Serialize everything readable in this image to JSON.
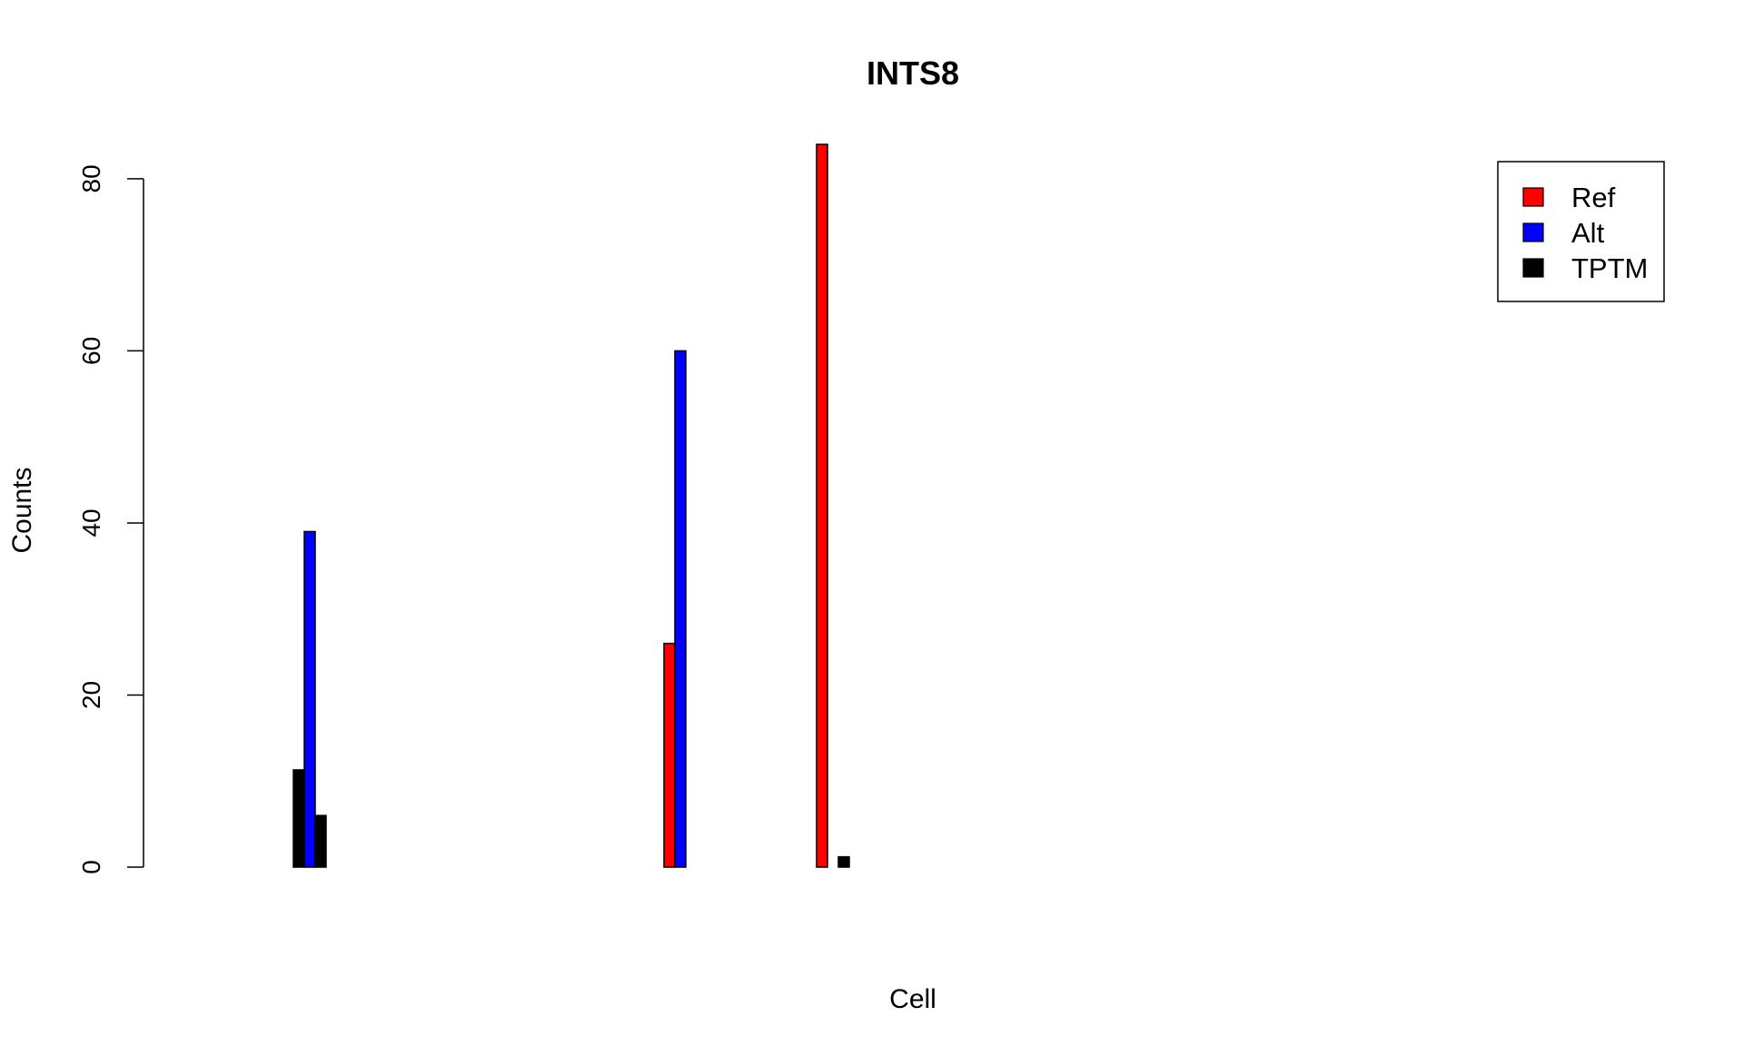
{
  "chart_data": {
    "type": "bar",
    "title": "INTS8",
    "xlabel": "Cell",
    "ylabel": "Counts",
    "ylim": [
      0,
      84
    ],
    "yticks": [
      0,
      20,
      40,
      60,
      80
    ],
    "xlim_slots": 34,
    "legend_position": "top-right",
    "colors": {
      "Ref": "#ff0000",
      "Alt": "#0000ff",
      "TPTM": "#000000"
    },
    "series": [
      {
        "name": "Ref",
        "color": "#ff0000",
        "values": [
          0,
          0,
          0,
          0,
          0,
          0,
          0,
          0,
          0,
          0,
          0,
          0,
          0,
          0,
          0,
          0,
          0,
          0,
          0,
          0,
          0,
          0,
          0,
          26,
          0,
          0,
          0,
          0,
          0,
          0,
          84,
          0,
          0,
          0
        ]
      },
      {
        "name": "Alt",
        "color": "#0000ff",
        "values": [
          null,
          null,
          null,
          null,
          0,
          0,
          39,
          null,
          0,
          null,
          null,
          null,
          null,
          null,
          null,
          null,
          null,
          null,
          null,
          null,
          null,
          null,
          null,
          60,
          null,
          null,
          0,
          null,
          null,
          null,
          0,
          null,
          null,
          null
        ]
      },
      {
        "name": "TPTM",
        "color": "#000000",
        "values": [
          null,
          null,
          null,
          null,
          0,
          11.3,
          6,
          null,
          0,
          null,
          null,
          null,
          null,
          null,
          null,
          null,
          null,
          null,
          null,
          null,
          null,
          null,
          null,
          0,
          null,
          null,
          0,
          null,
          null,
          null,
          1.2,
          null,
          null,
          null
        ]
      }
    ]
  }
}
